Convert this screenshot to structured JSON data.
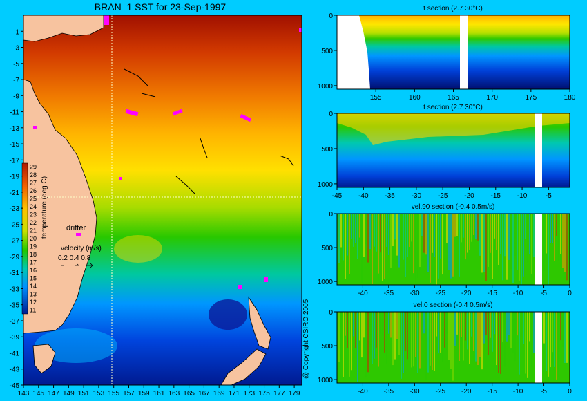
{
  "title": "BRAN_1 SST for 23-Sep-1997",
  "copyright": "@ Copyright CSIRO 2005",
  "colors": {
    "background": "#00ccff",
    "land": "#f7c39f",
    "drifter_marker": "#ff00ff",
    "no_data": "#ffffff",
    "crosshair": "#ffffc8"
  },
  "chart_data": [
    {
      "id": "map",
      "type": "heatmap",
      "title": "BRAN_1 SST for 23-Sep-1997",
      "x_ticks": [
        "143",
        "145",
        "147",
        "149",
        "151",
        "153",
        "155",
        "157",
        "159",
        "161",
        "163",
        "165",
        "167",
        "169",
        "171",
        "173",
        "175",
        "177",
        "179"
      ],
      "y_ticks": [
        "-1",
        "-3",
        "-5",
        "-7",
        "-9",
        "-11",
        "-13",
        "-15",
        "-17",
        "-19",
        "-21",
        "-23",
        "-25",
        "-27",
        "-29",
        "-31",
        "-33",
        "-35",
        "-37",
        "-39",
        "-41",
        "-43",
        "-45"
      ],
      "xlim": [
        143,
        180
      ],
      "ylim": [
        -45,
        1
      ],
      "section_lon": 155,
      "section_lat": -22,
      "colorbar": {
        "label": "temperature (deg C)",
        "ticks": [
          "29",
          "28",
          "27",
          "26",
          "25",
          "24",
          "23",
          "22",
          "21",
          "20",
          "19",
          "18",
          "17",
          "16",
          "15",
          "14",
          "13",
          "12",
          "11"
        ]
      },
      "legend": {
        "drifter_label": "drifter",
        "velocity_label": "velocity (m/s)",
        "velocity_values": "0.2 0.4 0.8"
      }
    },
    {
      "id": "section1",
      "type": "heatmap",
      "title": "t section (2.7      30°C)",
      "x_ticks": [
        "155",
        "160",
        "165",
        "170",
        "175",
        "180"
      ],
      "xlim": [
        150,
        180
      ],
      "y_ticks": [
        "0",
        "500",
        "1000"
      ],
      "ylim": [
        1050,
        0
      ]
    },
    {
      "id": "section2",
      "type": "heatmap",
      "title": "t section (2.7      30°C)",
      "x_ticks": [
        "-45",
        "-40",
        "-35",
        "-30",
        "-25",
        "-20",
        "-15",
        "-10",
        "-5"
      ],
      "xlim": [
        -45,
        -1
      ],
      "y_ticks": [
        "0",
        "500",
        "1000"
      ],
      "ylim": [
        1050,
        0
      ]
    },
    {
      "id": "section3",
      "type": "heatmap",
      "title": "vel.90 section (-0.4      0.5m/s)",
      "x_ticks": [
        "-40",
        "-35",
        "-30",
        "-25",
        "-20",
        "-15",
        "-10",
        "-5",
        "0"
      ],
      "xlim": [
        -45,
        0
      ],
      "y_ticks": [
        "0",
        "500",
        "1000"
      ],
      "ylim": [
        1050,
        0
      ]
    },
    {
      "id": "section4",
      "type": "heatmap",
      "title": "vel.0 section (-0.4      0.5m/s)",
      "x_ticks": [
        "-40",
        "-35",
        "-30",
        "-25",
        "-20",
        "-15",
        "-10",
        "-5",
        "0"
      ],
      "xlim": [
        -45,
        0
      ],
      "y_ticks": [
        "0",
        "500",
        "1000"
      ],
      "ylim": [
        1050,
        0
      ]
    }
  ]
}
